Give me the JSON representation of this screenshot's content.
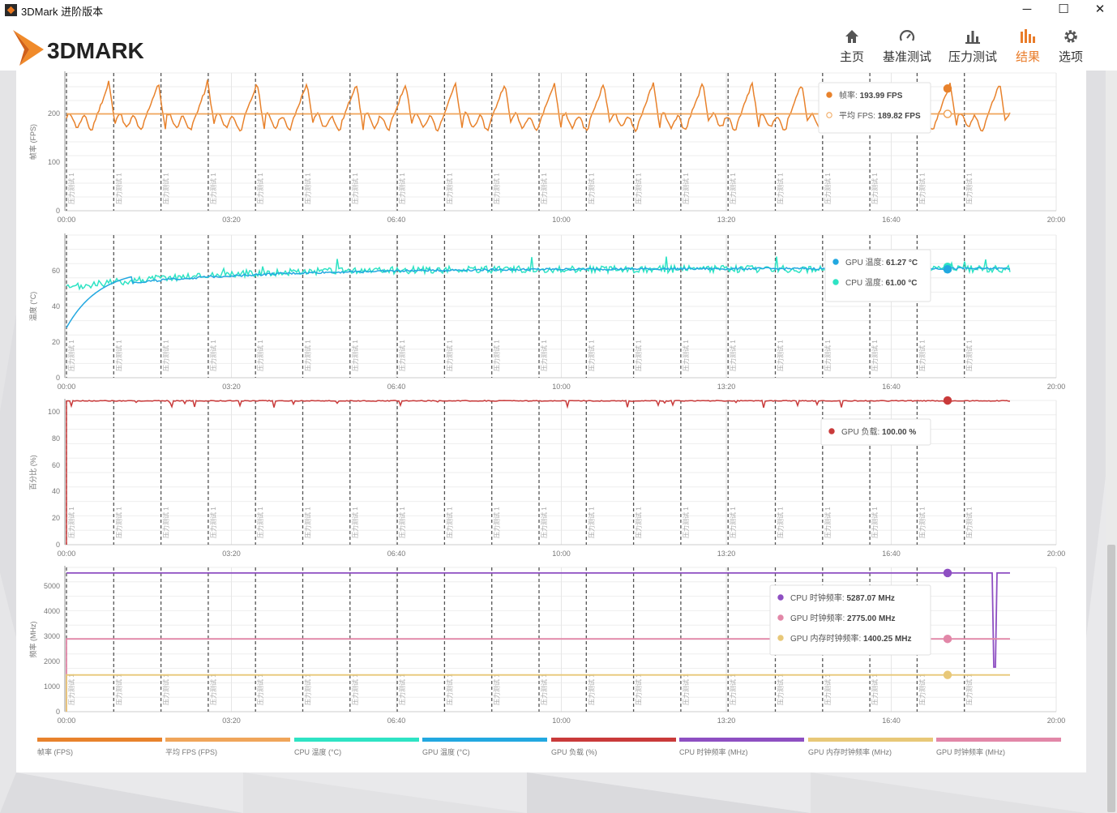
{
  "window": {
    "title": "3DMark 进阶版本",
    "minimize": "─",
    "maximize": "☐",
    "close": "✕"
  },
  "header": {
    "logo_text": "3DMARK",
    "nav": [
      {
        "label": "主页",
        "icon": "home-icon",
        "active": false
      },
      {
        "label": "基准测试",
        "icon": "gauge-icon",
        "active": false
      },
      {
        "label": "压力测试",
        "icon": "bar-chart-icon",
        "active": false
      },
      {
        "label": "结果",
        "icon": "results-icon",
        "active": true
      },
      {
        "label": "选项",
        "icon": "gear-icon",
        "active": false
      }
    ]
  },
  "colors": {
    "accent": "#e97c2a",
    "fps": "#e8822c",
    "avg_fps": "#f0a55a",
    "cpu_temp": "#2ee3c4",
    "gpu_temp": "#22a8e0",
    "gpu_load": "#c93a3a",
    "cpu_clock": "#8e4fc2",
    "gpu_mem_clock": "#e8c878",
    "gpu_clock": "#e287a8"
  },
  "x_ticks": [
    "00:00",
    "03:20",
    "06:40",
    "10:00",
    "13:20",
    "16:40",
    "20:00"
  ],
  "marker_label": "压力测试 1",
  "marker_count": 20,
  "chart_data": [
    {
      "type": "line",
      "ylabel": "帧率 (FPS)",
      "ylim": [
        0,
        270
      ],
      "y_ticks": [
        "0",
        "100",
        "200"
      ],
      "xlim_seconds": [
        0,
        1200
      ],
      "series": [
        {
          "name": "帧率",
          "color_key": "fps",
          "pattern": "sawtooth",
          "min": 160,
          "max": 270,
          "period_seconds": 60
        },
        {
          "name": "平均 FPS",
          "color_key": "avg_fps",
          "pattern": "flat",
          "value": 189.82
        }
      ],
      "tooltip": [
        {
          "name": "帧率",
          "value": "193.99 FPS",
          "color_key": "fps",
          "hollow": false
        },
        {
          "name": "平均 FPS",
          "value": "189.82 FPS",
          "color_key": "avg_fps",
          "hollow": true
        }
      ]
    },
    {
      "type": "line",
      "ylabel": "温度 (°C)",
      "ylim": [
        0,
        80
      ],
      "y_ticks": [
        "0",
        "20",
        "40",
        "60"
      ],
      "series": [
        {
          "name": "CPU 温度",
          "color_key": "cpu_temp",
          "pattern": "noisy-rise",
          "start": 50,
          "end": 61.0
        },
        {
          "name": "GPU 温度",
          "color_key": "gpu_temp",
          "pattern": "rise",
          "start": 28,
          "end": 61.27
        }
      ],
      "tooltip": [
        {
          "name": "GPU 温度",
          "value": "61.27 °C",
          "color_key": "gpu_temp"
        },
        {
          "name": "CPU 温度",
          "value": "61.00 °C",
          "color_key": "cpu_temp"
        }
      ]
    },
    {
      "type": "line",
      "ylabel": "百分比 (%)",
      "ylim": [
        0,
        100
      ],
      "y_ticks": [
        "0",
        "20",
        "40",
        "60",
        "80",
        "100"
      ],
      "series": [
        {
          "name": "GPU 负载",
          "color_key": "gpu_load",
          "pattern": "flat-dips",
          "value": 100.0
        }
      ],
      "tooltip": [
        {
          "name": "GPU 负载",
          "value": "100.00 %",
          "color_key": "gpu_load"
        }
      ]
    },
    {
      "type": "line",
      "ylabel": "频率 (MHz)",
      "ylim": [
        0,
        5500
      ],
      "y_ticks": [
        "0",
        "1000",
        "2000",
        "3000",
        "4000",
        "5000"
      ],
      "series": [
        {
          "name": "CPU 时钟频率",
          "color_key": "cpu_clock",
          "pattern": "flat",
          "value": 5287.07
        },
        {
          "name": "GPU 时钟频率",
          "color_key": "gpu_clock",
          "pattern": "flat",
          "value": 2775.0
        },
        {
          "name": "GPU 内存时钟频率",
          "color_key": "gpu_mem_clock",
          "pattern": "flat",
          "value": 1400.25
        }
      ],
      "tooltip": [
        {
          "name": "CPU 时钟频率",
          "value": "5287.07 MHz",
          "color_key": "cpu_clock"
        },
        {
          "name": "GPU 时钟频率",
          "value": "2775.00 MHz",
          "color_key": "gpu_clock"
        },
        {
          "name": "GPU 内存时钟频率",
          "value": "1400.25 MHz",
          "color_key": "gpu_mem_clock"
        }
      ]
    }
  ],
  "legend": [
    {
      "label": "帧率 (FPS)",
      "color_key": "fps"
    },
    {
      "label": "平均 FPS (FPS)",
      "color_key": "avg_fps"
    },
    {
      "label": "CPU 温度 (°C)",
      "color_key": "cpu_temp"
    },
    {
      "label": "GPU 温度 (°C)",
      "color_key": "gpu_temp"
    },
    {
      "label": "GPU 负载 (%)",
      "color_key": "gpu_load"
    },
    {
      "label": "CPU 时钟频率 (MHz)",
      "color_key": "cpu_clock"
    },
    {
      "label": "GPU 内存时钟频率 (MHz)",
      "color_key": "gpu_mem_clock"
    },
    {
      "label": "GPU 时钟频率 (MHz)",
      "color_key": "gpu_clock"
    }
  ]
}
